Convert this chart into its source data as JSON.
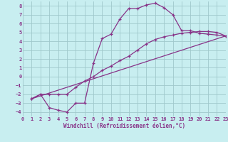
{
  "xlabel": "Windchill (Refroidissement éolien,°C)",
  "bg_color": "#c8eef0",
  "grid_color": "#a0c8cc",
  "line_color": "#883388",
  "xlim": [
    0,
    23
  ],
  "ylim": [
    -4.5,
    8.5
  ],
  "xticks": [
    0,
    1,
    2,
    3,
    4,
    5,
    6,
    7,
    8,
    9,
    10,
    11,
    12,
    13,
    14,
    15,
    16,
    17,
    18,
    19,
    20,
    21,
    22,
    23
  ],
  "yticks": [
    -4,
    -3,
    -2,
    -1,
    0,
    1,
    2,
    3,
    4,
    5,
    6,
    7,
    8
  ],
  "line1_x": [
    1,
    2,
    3,
    4,
    5,
    6,
    7,
    8,
    9,
    10,
    11,
    12,
    13,
    14,
    15,
    16,
    17,
    18,
    19,
    20,
    21,
    22,
    23
  ],
  "line1_y": [
    -2.5,
    -2.0,
    -3.5,
    -3.8,
    -4.0,
    -3.0,
    -3.0,
    1.5,
    4.3,
    4.8,
    6.5,
    7.7,
    7.7,
    8.1,
    8.3,
    7.8,
    7.0,
    5.2,
    5.2,
    4.9,
    4.8,
    4.7,
    4.6
  ],
  "line2_x": [
    1,
    2,
    3,
    4,
    5,
    6,
    7,
    8,
    9,
    10,
    11,
    12,
    13,
    14,
    15,
    16,
    17,
    18,
    19,
    20,
    21,
    22,
    23
  ],
  "line2_y": [
    -2.5,
    -2.0,
    -2.0,
    -2.0,
    -2.0,
    -1.2,
    -0.5,
    0.0,
    0.7,
    1.2,
    1.8,
    2.3,
    3.0,
    3.7,
    4.2,
    4.5,
    4.7,
    4.9,
    5.0,
    5.1,
    5.1,
    5.0,
    4.6
  ],
  "line3_x": [
    1,
    23
  ],
  "line3_y": [
    -2.5,
    4.6
  ]
}
